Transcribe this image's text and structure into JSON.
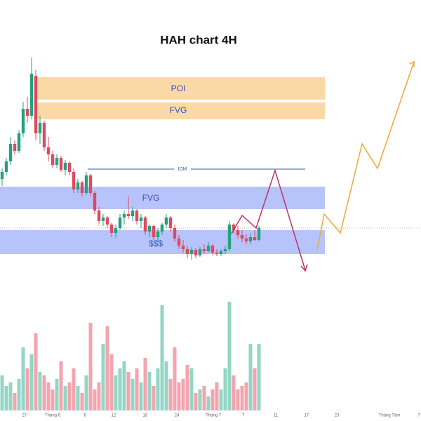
{
  "chart_data": {
    "type": "candlestick",
    "title": "HAH chart 4H",
    "annotations": [
      "POI",
      "FVG",
      "IDM",
      "FVG",
      "$$$"
    ],
    "up_color": "#26a07f",
    "down_color": "#e2485e",
    "volume_up_color": "#93d6c6",
    "volume_down_color": "#f3a4ae",
    "xlim": [
      -0.5,
      99.5
    ],
    "ylim": [
      0,
      400
    ],
    "volume_lim": [
      0,
      200
    ],
    "xticks": [
      {
        "value": 5.3,
        "label": "27"
      },
      {
        "value": 12,
        "label": "Tháng 6"
      },
      {
        "value": 19.7,
        "label": "6"
      },
      {
        "value": 26.5,
        "label": "12"
      },
      {
        "value": 34,
        "label": "18"
      },
      {
        "value": 41.5,
        "label": "24"
      },
      {
        "value": 50.2,
        "label": "Tháng 7"
      },
      {
        "value": 57.3,
        "label": "7"
      },
      {
        "value": 65,
        "label": "11"
      },
      {
        "value": 72.3,
        "label": "17"
      },
      {
        "value": 79.5,
        "label": "23"
      },
      {
        "value": 92,
        "label": "Tháng Tám"
      },
      {
        "value": 99,
        "label": "7"
      }
    ],
    "candles": [
      {
        "o": 145,
        "h": 160,
        "l": 135,
        "c": 155
      },
      {
        "o": 155,
        "h": 175,
        "l": 150,
        "c": 170
      },
      {
        "o": 170,
        "h": 205,
        "l": 165,
        "c": 195
      },
      {
        "o": 195,
        "h": 200,
        "l": 180,
        "c": 185
      },
      {
        "o": 185,
        "h": 215,
        "l": 182,
        "c": 210
      },
      {
        "o": 210,
        "h": 255,
        "l": 205,
        "c": 245
      },
      {
        "o": 245,
        "h": 262,
        "l": 225,
        "c": 235
      },
      {
        "o": 235,
        "h": 318,
        "l": 230,
        "c": 295
      },
      {
        "o": 292,
        "h": 300,
        "l": 200,
        "c": 210
      },
      {
        "o": 210,
        "h": 235,
        "l": 195,
        "c": 225
      },
      {
        "o": 225,
        "h": 228,
        "l": 185,
        "c": 190
      },
      {
        "o": 190,
        "h": 205,
        "l": 170,
        "c": 180
      },
      {
        "o": 180,
        "h": 185,
        "l": 160,
        "c": 165
      },
      {
        "o": 165,
        "h": 180,
        "l": 160,
        "c": 175
      },
      {
        "o": 175,
        "h": 178,
        "l": 155,
        "c": 158
      },
      {
        "o": 158,
        "h": 172,
        "l": 150,
        "c": 168
      },
      {
        "o": 168,
        "h": 170,
        "l": 150,
        "c": 155
      },
      {
        "o": 155,
        "h": 160,
        "l": 125,
        "c": 130
      },
      {
        "o": 130,
        "h": 145,
        "l": 125,
        "c": 140
      },
      {
        "o": 140,
        "h": 142,
        "l": 120,
        "c": 125
      },
      {
        "o": 125,
        "h": 155,
        "l": 122,
        "c": 150
      },
      {
        "o": 150,
        "h": 152,
        "l": 120,
        "c": 125
      },
      {
        "o": 125,
        "h": 128,
        "l": 95,
        "c": 100
      },
      {
        "o": 100,
        "h": 105,
        "l": 80,
        "c": 85
      },
      {
        "o": 85,
        "h": 95,
        "l": 78,
        "c": 90
      },
      {
        "o": 90,
        "h": 92,
        "l": 75,
        "c": 80
      },
      {
        "o": 80,
        "h": 82,
        "l": 62,
        "c": 68
      },
      {
        "o": 68,
        "h": 80,
        "l": 60,
        "c": 75
      },
      {
        "o": 75,
        "h": 95,
        "l": 72,
        "c": 90
      },
      {
        "o": 90,
        "h": 100,
        "l": 80,
        "c": 95
      },
      {
        "o": 95,
        "h": 120,
        "l": 88,
        "c": 92
      },
      {
        "o": 92,
        "h": 105,
        "l": 85,
        "c": 100
      },
      {
        "o": 100,
        "h": 102,
        "l": 80,
        "c": 85
      },
      {
        "o": 85,
        "h": 95,
        "l": 75,
        "c": 90
      },
      {
        "o": 90,
        "h": 92,
        "l": 65,
        "c": 70
      },
      {
        "o": 70,
        "h": 80,
        "l": 62,
        "c": 78
      },
      {
        "o": 78,
        "h": 80,
        "l": 58,
        "c": 62
      },
      {
        "o": 62,
        "h": 75,
        "l": 55,
        "c": 70
      },
      {
        "o": 70,
        "h": 82,
        "l": 65,
        "c": 80
      },
      {
        "o": 80,
        "h": 95,
        "l": 75,
        "c": 90
      },
      {
        "o": 90,
        "h": 92,
        "l": 70,
        "c": 75
      },
      {
        "o": 75,
        "h": 80,
        "l": 55,
        "c": 60
      },
      {
        "o": 60,
        "h": 65,
        "l": 45,
        "c": 50
      },
      {
        "o": 50,
        "h": 58,
        "l": 40,
        "c": 45
      },
      {
        "o": 45,
        "h": 50,
        "l": 32,
        "c": 38
      },
      {
        "o": 38,
        "h": 48,
        "l": 30,
        "c": 44
      },
      {
        "o": 44,
        "h": 46,
        "l": 32,
        "c": 36
      },
      {
        "o": 36,
        "h": 48,
        "l": 34,
        "c": 45
      },
      {
        "o": 45,
        "h": 52,
        "l": 38,
        "c": 42
      },
      {
        "o": 42,
        "h": 55,
        "l": 40,
        "c": 50
      },
      {
        "o": 50,
        "h": 52,
        "l": 36,
        "c": 40
      },
      {
        "o": 40,
        "h": 45,
        "l": 35,
        "c": 38
      },
      {
        "o": 38,
        "h": 45,
        "l": 35,
        "c": 42
      },
      {
        "o": 42,
        "h": 50,
        "l": 38,
        "c": 45
      },
      {
        "o": 45,
        "h": 85,
        "l": 42,
        "c": 80
      },
      {
        "o": 80,
        "h": 82,
        "l": 68,
        "c": 72
      },
      {
        "o": 72,
        "h": 78,
        "l": 60,
        "c": 65
      },
      {
        "o": 65,
        "h": 72,
        "l": 55,
        "c": 60
      },
      {
        "o": 60,
        "h": 66,
        "l": 52,
        "c": 56
      },
      {
        "o": 56,
        "h": 68,
        "l": 52,
        "c": 62
      },
      {
        "o": 62,
        "h": 72,
        "l": 56,
        "c": 58
      },
      {
        "o": 58,
        "h": 78,
        "l": 56,
        "c": 75
      }
    ],
    "volume": [
      50,
      35,
      40,
      25,
      45,
      90,
      60,
      80,
      110,
      55,
      50,
      40,
      30,
      45,
      70,
      35,
      40,
      60,
      35,
      25,
      50,
      125,
      30,
      40,
      95,
      120,
      80,
      50,
      60,
      70,
      55,
      45,
      60,
      40,
      75,
      55,
      35,
      60,
      150,
      70,
      45,
      90,
      40,
      45,
      65,
      60,
      25,
      30,
      35,
      20,
      30,
      40,
      30,
      60,
      155,
      50,
      30,
      35,
      40,
      95,
      60,
      95
    ]
  }
}
